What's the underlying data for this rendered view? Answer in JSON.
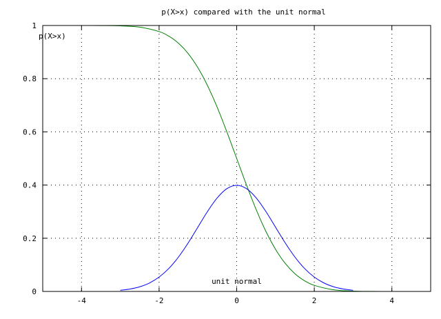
{
  "chart_data": {
    "type": "line",
    "title": "p(X>x) compared with the unit normal",
    "xlabel": "",
    "ylabel": "",
    "xlim": [
      -5,
      5
    ],
    "ylim": [
      0,
      1
    ],
    "grid": true,
    "grid_style": "dotted",
    "x_ticks": [
      -4,
      -2,
      0,
      2,
      4
    ],
    "x_tick_labels": [
      "-4",
      "-2",
      "0",
      "2",
      "4"
    ],
    "y_ticks": [
      0,
      0.2,
      0.4,
      0.6,
      0.8,
      1
    ],
    "y_tick_labels": [
      "0",
      "0.2",
      "0.4",
      "0.6",
      "0.8",
      "1"
    ],
    "series": [
      {
        "name": "p(X>x)",
        "color": "#007f00",
        "x": [
          -5,
          -4.5,
          -4,
          -3.5,
          -3,
          -2.5,
          -2,
          -1.75,
          -1.5,
          -1.25,
          -1,
          -0.75,
          -0.5,
          -0.25,
          0,
          0.25,
          0.5,
          0.75,
          1,
          1.25,
          1.5,
          1.75,
          2,
          2.5,
          3,
          3.5,
          4,
          4.5,
          5
        ],
        "y": [
          1,
          1,
          1,
          0.9998,
          0.9987,
          0.9938,
          0.9772,
          0.9599,
          0.9332,
          0.8944,
          0.8413,
          0.7734,
          0.6915,
          0.5987,
          0.5,
          0.4013,
          0.3085,
          0.2266,
          0.1587,
          0.1056,
          0.0668,
          0.0401,
          0.0228,
          0.0062,
          0.0013,
          0.0002,
          0,
          0,
          0
        ]
      },
      {
        "name": "unit normal",
        "color": "#0000ff",
        "x": [
          -3,
          -2.75,
          -2.5,
          -2.25,
          -2,
          -1.75,
          -1.5,
          -1.25,
          -1,
          -0.75,
          -0.5,
          -0.25,
          0,
          0.25,
          0.5,
          0.75,
          1,
          1.25,
          1.5,
          1.75,
          2,
          2.25,
          2.5,
          2.75,
          3
        ],
        "y": [
          0.0044,
          0.0091,
          0.0175,
          0.0317,
          0.054,
          0.0863,
          0.1295,
          0.1826,
          0.242,
          0.3011,
          0.3521,
          0.3867,
          0.3989,
          0.3867,
          0.3521,
          0.3011,
          0.242,
          0.1826,
          0.1295,
          0.0863,
          0.054,
          0.0317,
          0.0175,
          0.0091,
          0.0044
        ]
      }
    ]
  }
}
